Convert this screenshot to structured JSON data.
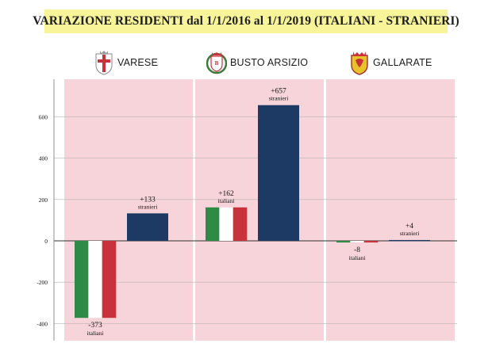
{
  "title": "VARIAZIONE RESIDENTI dal 1/1/2016 al 1/1/2019 (ITALIANI - STRANIERI)",
  "cities": [
    {
      "name": "VARESE",
      "icon": "varese-crest-icon"
    },
    {
      "name": "BUSTO ARSIZIO",
      "icon": "busto-arsizio-crest-icon"
    },
    {
      "name": "GALLARATE",
      "icon": "gallarate-crest-icon"
    }
  ],
  "colors": {
    "panel": "#f6d4d9",
    "stranieri": "#1c3a63",
    "flag_green": "#2e8b45",
    "flag_white": "#ffffff",
    "flag_red": "#c8323a",
    "title_bg": "#f7f49a"
  },
  "chart_data": {
    "type": "bar",
    "title": "VARIAZIONE RESIDENTI dal 1/1/2016 al 1/1/2019 (ITALIANI - STRANIERI)",
    "categories": [
      "VARESE",
      "BUSTO ARSIZIO",
      "GALLARATE"
    ],
    "series": [
      {
        "name": "italiani",
        "style": "italian-flag",
        "values": [
          -373,
          162,
          -8
        ],
        "labels": [
          "-373",
          "+162",
          "-8"
        ]
      },
      {
        "name": "stranieri",
        "style": "solid",
        "values": [
          133,
          657,
          4
        ],
        "labels": [
          "+133",
          "+657",
          "+4"
        ]
      }
    ],
    "yticks": [
      -400,
      -200,
      0,
      200,
      400,
      600
    ],
    "ylim": [
      -480,
      780
    ],
    "grid": true,
    "legend": "none"
  }
}
